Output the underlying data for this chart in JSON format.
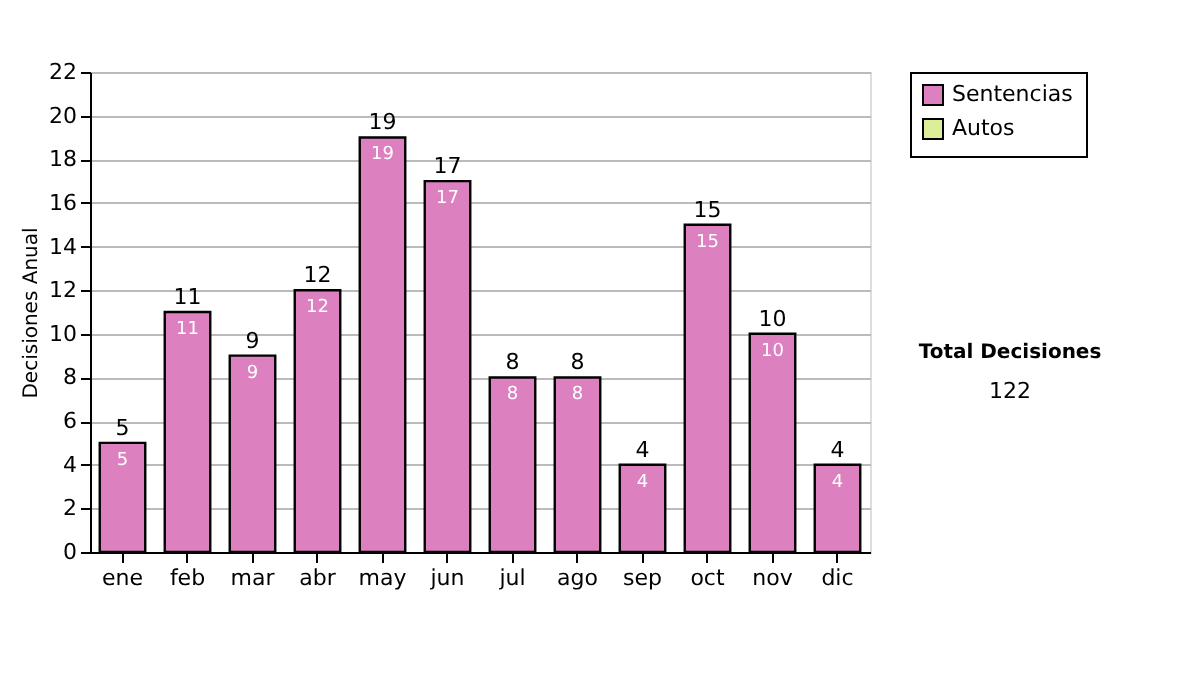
{
  "chart_data": {
    "type": "bar",
    "ylabel": "Decisiones Anual",
    "categories": [
      "ene",
      "feb",
      "mar",
      "abr",
      "may",
      "jun",
      "jul",
      "ago",
      "sep",
      "oct",
      "nov",
      "dic"
    ],
    "series": [
      {
        "name": "Sentencias",
        "color": "#dd80c0",
        "values": [
          5,
          11,
          9,
          12,
          19,
          17,
          8,
          8,
          4,
          15,
          10,
          4
        ],
        "value_labels": [
          "5",
          "11",
          "9",
          "12",
          "19",
          "17",
          "8",
          "8",
          "4",
          "15",
          "10",
          "4"
        ]
      },
      {
        "name": "Autos",
        "color": "#ddee99",
        "values": [
          null,
          null,
          null,
          null,
          null,
          null,
          null,
          null,
          null,
          null,
          null,
          null
        ]
      }
    ],
    "totals": [
      "5",
      "11",
      "9",
      "12",
      "19",
      "17",
      "8",
      "8",
      "4",
      "15",
      "10",
      "4"
    ],
    "ylim": [
      0,
      22
    ],
    "yticks": [
      0,
      2,
      4,
      6,
      8,
      10,
      12,
      14,
      16,
      18,
      20,
      22
    ],
    "grid": "y",
    "legend": "right",
    "annotations": [
      "Total Decisiones",
      "122"
    ]
  }
}
